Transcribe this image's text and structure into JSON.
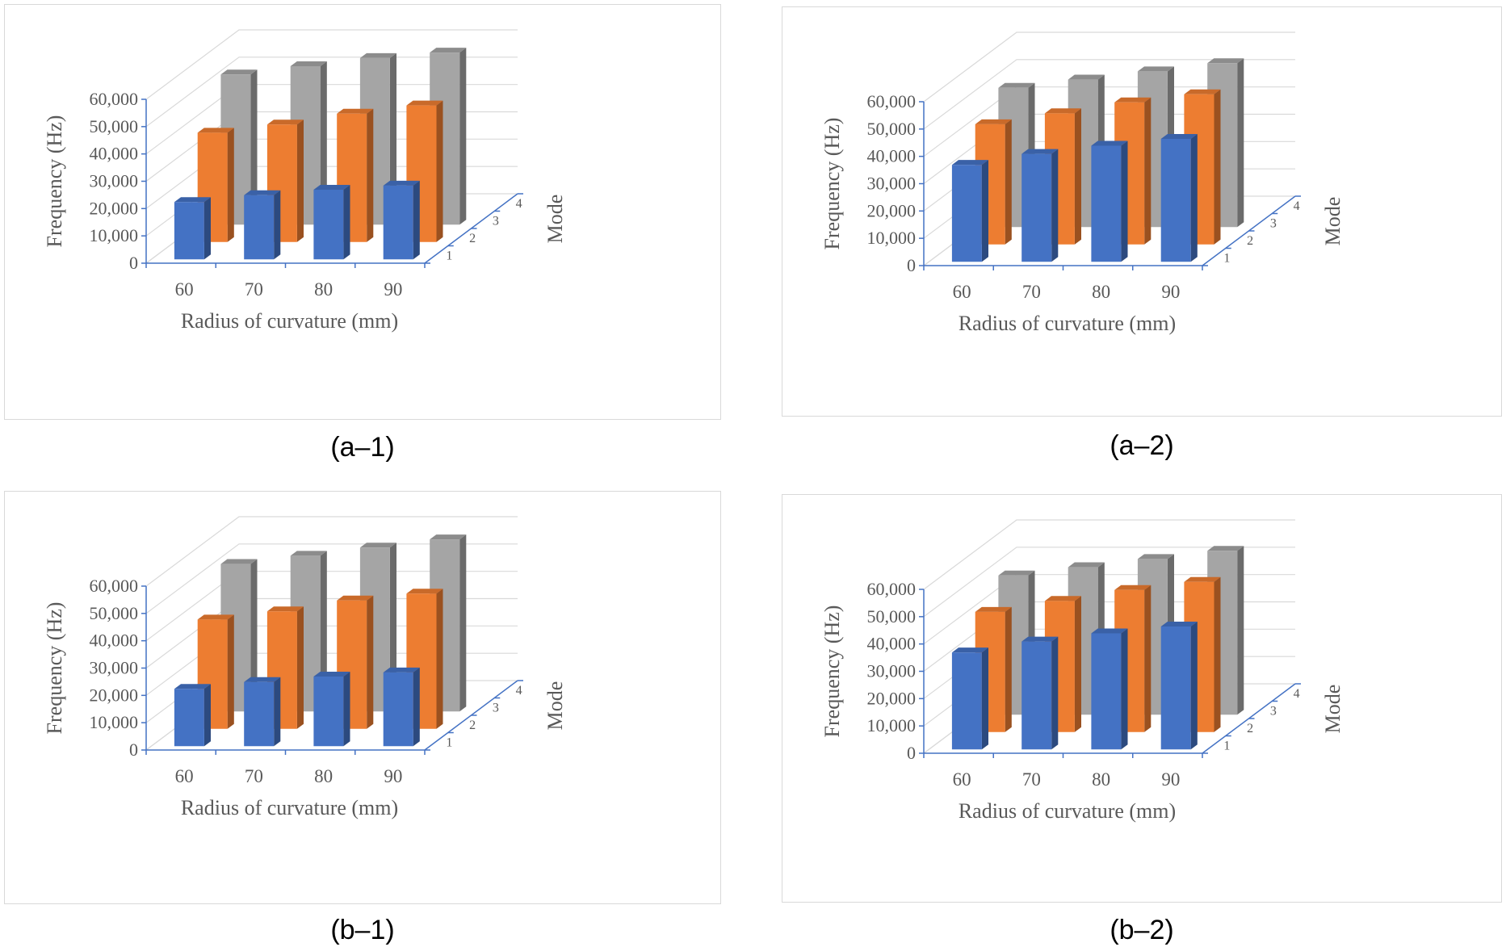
{
  "chart_data": [
    {
      "type": "bar",
      "subtype": "3d-column",
      "caption": "(a–1)",
      "categories": [
        "60",
        "70",
        "80",
        "90"
      ],
      "xlabel": "Radius of curvature  (mm)",
      "ylabel": "Frequency  (Hz)",
      "zlabel": "Mode",
      "ylim": [
        0,
        60000
      ],
      "yticks": [
        "0",
        "10,000",
        "20,000",
        "30,000",
        "40,000",
        "50,000",
        "60,000"
      ],
      "depth_ticks": [
        "1",
        "2",
        "3",
        "4"
      ],
      "grid": true,
      "series": [
        {
          "values": [
            21000,
            23500,
            25500,
            27000
          ],
          "color": "#4472C4"
        },
        {
          "values": [
            40000,
            43000,
            47000,
            50000
          ],
          "color": "#ED7D31"
        },
        {
          "values": [
            55000,
            58000,
            61000,
            63000
          ],
          "color": "#A5A5A5"
        }
      ]
    },
    {
      "type": "bar",
      "subtype": "3d-column",
      "caption": "(a–2)",
      "categories": [
        "60",
        "70",
        "80",
        "90"
      ],
      "xlabel": "Radius of curvature  (mm)",
      "ylabel": "Frequency  (Hz)",
      "zlabel": "Mode",
      "ylim": [
        0,
        60000
      ],
      "yticks": [
        "0",
        "10,000",
        "20,000",
        "30,000",
        "40,000",
        "50,000",
        "60,000"
      ],
      "depth_ticks": [
        "1",
        "2",
        "3",
        "4"
      ],
      "grid": true,
      "series": [
        {
          "values": [
            35500,
            39500,
            42500,
            45000
          ],
          "color": "#4472C4"
        },
        {
          "values": [
            44000,
            48000,
            52000,
            55000
          ],
          "color": "#ED7D31"
        },
        {
          "values": [
            51000,
            54000,
            57000,
            60000
          ],
          "color": "#A5A5A5"
        }
      ]
    },
    {
      "type": "bar",
      "subtype": "3d-column",
      "caption": "(b–1)",
      "categories": [
        "60",
        "70",
        "80",
        "90"
      ],
      "xlabel": "Radius of curvature  (mm)",
      "ylabel": "Frequency  (Hz)",
      "zlabel": "Mode",
      "ylim": [
        0,
        60000
      ],
      "yticks": [
        "0",
        "10,000",
        "20,000",
        "30,000",
        "40,000",
        "50,000",
        "60,000"
      ],
      "depth_ticks": [
        "1",
        "2",
        "3",
        "4"
      ],
      "grid": true,
      "series": [
        {
          "values": [
            21000,
            23500,
            25500,
            27000
          ],
          "color": "#4472C4"
        },
        {
          "values": [
            40000,
            43000,
            47000,
            49500
          ],
          "color": "#ED7D31"
        },
        {
          "values": [
            54000,
            57000,
            60000,
            63000
          ],
          "color": "#A5A5A5"
        }
      ]
    },
    {
      "type": "bar",
      "subtype": "3d-column",
      "caption": "(b–2)",
      "categories": [
        "60",
        "70",
        "80",
        "90"
      ],
      "xlabel": "Radius of curvature  (mm)",
      "ylabel": "Frequency  (Hz)",
      "zlabel": "Mode",
      "ylim": [
        0,
        60000
      ],
      "yticks": [
        "0",
        "10,000",
        "20,000",
        "30,000",
        "40,000",
        "50,000",
        "60,000"
      ],
      "depth_ticks": [
        "1",
        "2",
        "3",
        "4"
      ],
      "grid": true,
      "series": [
        {
          "values": [
            35500,
            39500,
            42500,
            45000
          ],
          "color": "#4472C4"
        },
        {
          "values": [
            44000,
            48000,
            52000,
            55000
          ],
          "color": "#ED7D31"
        },
        {
          "values": [
            51000,
            54000,
            57000,
            60000
          ],
          "color": "#A5A5A5"
        }
      ]
    }
  ]
}
